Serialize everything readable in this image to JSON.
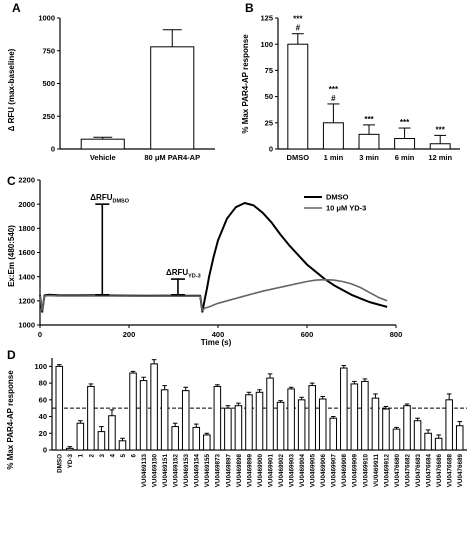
{
  "chart_data": [
    {
      "panel": "A",
      "type": "bar",
      "ylabel": "Δ RFU (max-baseline)",
      "ylim": [
        0,
        1000
      ],
      "yticks": [
        0,
        250,
        500,
        750,
        1000
      ],
      "categories": [
        "Vehicle",
        "80 μM PAR4-AP"
      ],
      "values": [
        75,
        780
      ],
      "errors": [
        15,
        130
      ]
    },
    {
      "panel": "B",
      "type": "bar",
      "ylabel": "% Max PAR4-AP response",
      "ylim": [
        0,
        125
      ],
      "yticks": [
        0,
        25,
        50,
        75,
        100,
        125
      ],
      "categories": [
        "DMSO",
        "1 min",
        "3 min",
        "6 min",
        "12 min"
      ],
      "values": [
        100,
        25,
        14,
        10,
        5
      ],
      "errors": [
        10,
        18,
        9,
        10,
        8
      ],
      "annotations": [
        [
          "#",
          "***"
        ],
        [
          "#",
          "***"
        ],
        [
          "***"
        ],
        [
          "***"
        ],
        [
          "***"
        ]
      ]
    },
    {
      "panel": "C",
      "type": "line",
      "ylabel": "Ex:Em (480:540)",
      "xlabel": "Time (s)",
      "xlim": [
        0,
        800
      ],
      "ylim": [
        1000,
        2200
      ],
      "xticks": [
        0,
        200,
        400,
        600,
        800
      ],
      "yticks": [
        1000,
        1200,
        1400,
        1600,
        1800,
        2000,
        2200
      ],
      "series": [
        {
          "name": "DMSO",
          "color": "#000000",
          "x": [
            0,
            5,
            10,
            20,
            40,
            80,
            120,
            160,
            200,
            240,
            280,
            320,
            360,
            365,
            370,
            375,
            380,
            390,
            400,
            420,
            440,
            460,
            480,
            500,
            520,
            540,
            560,
            580,
            600,
            620,
            640,
            660,
            680,
            700,
            720,
            740,
            760,
            780
          ],
          "y": [
            1245,
            1110,
            1245,
            1250,
            1247,
            1245,
            1246,
            1244,
            1243,
            1242,
            1243,
            1242,
            1242,
            1110,
            1210,
            1300,
            1400,
            1560,
            1700,
            1880,
            1975,
            2010,
            1990,
            1930,
            1850,
            1750,
            1660,
            1580,
            1500,
            1440,
            1380,
            1330,
            1290,
            1250,
            1220,
            1190,
            1170,
            1150
          ]
        },
        {
          "name": "10 μM YD-3",
          "color": "#666666",
          "x": [
            0,
            5,
            10,
            20,
            40,
            80,
            120,
            160,
            200,
            240,
            280,
            320,
            360,
            365,
            370,
            380,
            400,
            450,
            500,
            550,
            600,
            620,
            640,
            660,
            680,
            700,
            720,
            740,
            760,
            780
          ],
          "y": [
            1240,
            1120,
            1240,
            1243,
            1241,
            1240,
            1241,
            1240,
            1239,
            1238,
            1239,
            1238,
            1238,
            1120,
            1140,
            1150,
            1180,
            1230,
            1280,
            1320,
            1360,
            1372,
            1375,
            1372,
            1360,
            1340,
            1310,
            1270,
            1230,
            1200
          ]
        }
      ],
      "annotations": [
        {
          "base": "ΔRFU",
          "sub": "DMSO",
          "x": 140,
          "y_bottom": 1250,
          "y_top": 2000
        },
        {
          "base": "ΔRFU",
          "sub": "YD-3",
          "x": 310,
          "y_bottom": 1250,
          "y_top": 1380
        }
      ]
    },
    {
      "panel": "D",
      "type": "bar",
      "ylabel": "% Max PAR4-AP response",
      "ylim": [
        0,
        110
      ],
      "yticks": [
        0,
        20,
        40,
        60,
        80,
        100
      ],
      "threshold": 50,
      "categories": [
        "DMSO",
        "YD-3",
        "1",
        "2",
        "3",
        "4",
        "5",
        "6",
        "VU0469133",
        "VU0469150",
        "VU0469151",
        "VU0469152",
        "VU0469153",
        "VU0469154",
        "VU0469155",
        "VU0469873",
        "VU0469897",
        "VU0469898",
        "VU0469899",
        "VU0469900",
        "VU0469901",
        "VU0469902",
        "VU0469903",
        "VU0469904",
        "VU0469905",
        "VU0469906",
        "VU0469907",
        "VU0469908",
        "VU0469909",
        "VU0469910",
        "VU0469911",
        "VU0469912",
        "VU0476680",
        "VU0476682",
        "VU0476683",
        "VU0476684",
        "VU0476686",
        "VU0476688",
        "VU0476689"
      ],
      "values": [
        100,
        2,
        32,
        76,
        22,
        41,
        11,
        92,
        83,
        103,
        72,
        28,
        71,
        27,
        18,
        76,
        50,
        53,
        66,
        69,
        86,
        57,
        73,
        60,
        77,
        61,
        38,
        98,
        79,
        82,
        62,
        49,
        25,
        53,
        35,
        20,
        14,
        60,
        29
      ],
      "errors": [
        2,
        2,
        3,
        3,
        6,
        7,
        3,
        2,
        4,
        5,
        5,
        4,
        4,
        4,
        2,
        2,
        3,
        3,
        3,
        3,
        5,
        2,
        2,
        3,
        3,
        3,
        2,
        3,
        3,
        3,
        5,
        3,
        2,
        2,
        3,
        4,
        4,
        7,
        5
      ]
    }
  ]
}
